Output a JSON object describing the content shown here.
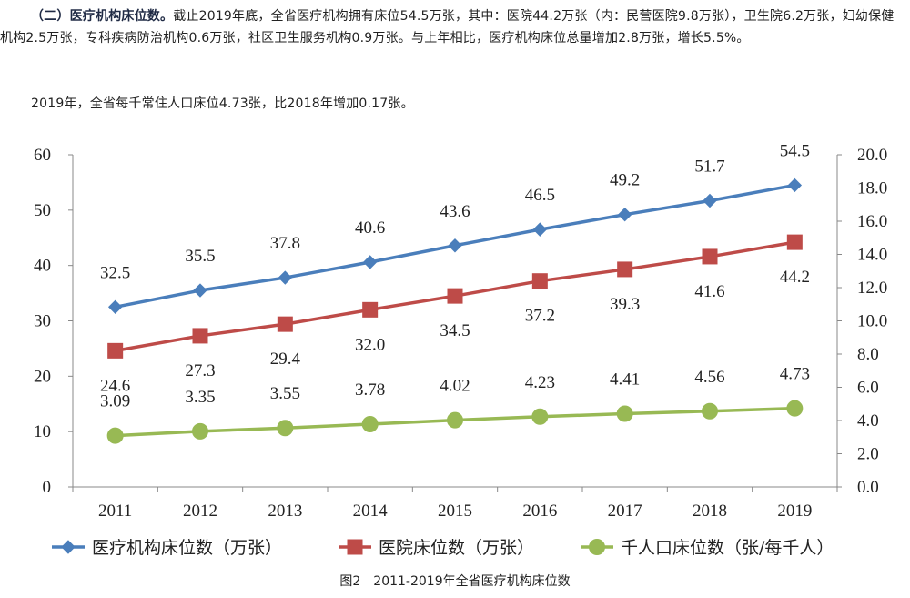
{
  "text": {
    "para1_heading": "（二）医疗机构床位数。",
    "para1_body": "截止2019年底，全省医疗机构拥有床位54.5万张，其中：医院44.2万张（内：民营医院9.8万张），卫生院6.2万张，妇幼保健机构2.5万张，专科疾病防治机构0.6万张，社区卫生服务机构0.9万张。与上年相比，医疗机构床位总量增加2.8万张，增长5.5%。",
    "para2": "2019年，全省每千常住人口床位4.73张，比2018年增加0.17张。",
    "caption": "图2　2011-2019年全省医疗机构床位数"
  },
  "chart_data": {
    "type": "line",
    "categories": [
      "2011",
      "2012",
      "2013",
      "2014",
      "2015",
      "2016",
      "2017",
      "2018",
      "2019"
    ],
    "y_left": {
      "min": 0,
      "max": 60,
      "ticks": [
        "0",
        "10",
        "20",
        "30",
        "40",
        "50",
        "60"
      ]
    },
    "y_right": {
      "min": 0,
      "max": 20,
      "ticks": [
        "0.0",
        "2.0",
        "4.0",
        "6.0",
        "8.0",
        "10.0",
        "12.0",
        "14.0",
        "16.0",
        "18.0",
        "20.0"
      ]
    },
    "grid": false,
    "legend_position": "bottom",
    "series": [
      {
        "name": "医疗机构床位数（万张）",
        "axis": "left",
        "color": "#4a7ebb",
        "marker": "diamond",
        "label_position": "above",
        "values": [
          32.5,
          35.5,
          37.8,
          40.6,
          43.6,
          46.5,
          49.2,
          51.7,
          54.5
        ],
        "labels": [
          "32.5",
          "35.5",
          "37.8",
          "40.6",
          "43.6",
          "46.5",
          "49.2",
          "51.7",
          "54.5"
        ]
      },
      {
        "name": "医院床位数（万张）",
        "axis": "left",
        "color": "#be4b48",
        "marker": "square",
        "label_position": "below",
        "values": [
          24.6,
          27.3,
          29.4,
          32.0,
          34.5,
          37.2,
          39.3,
          41.6,
          44.2
        ],
        "labels": [
          "24.6",
          "27.3",
          "29.4",
          "32.0",
          "34.5",
          "37.2",
          "39.3",
          "41.6",
          "44.2"
        ]
      },
      {
        "name": "千人口床位数（张/每千人）",
        "axis": "right",
        "color": "#98b954",
        "marker": "circle",
        "label_position": "above",
        "values": [
          3.09,
          3.35,
          3.55,
          3.78,
          4.02,
          4.23,
          4.41,
          4.56,
          4.73
        ],
        "labels": [
          "3.09",
          "3.35",
          "3.55",
          "3.78",
          "4.02",
          "4.23",
          "4.41",
          "4.56",
          "4.73"
        ]
      }
    ]
  }
}
